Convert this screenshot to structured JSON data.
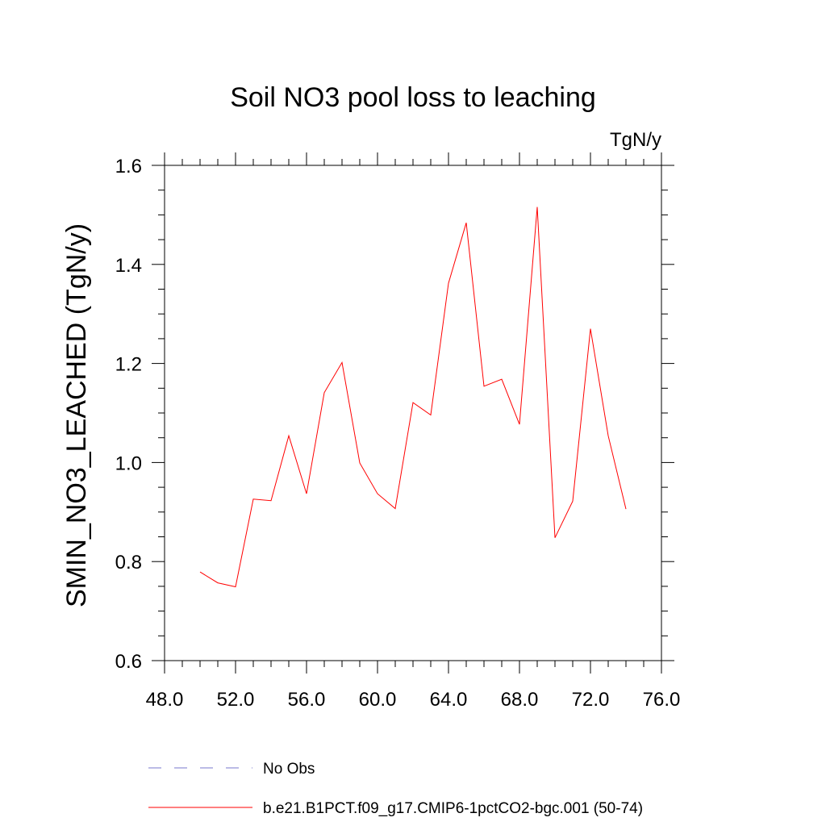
{
  "chart_data": {
    "type": "line",
    "title": "Soil NO3 pool loss to leaching",
    "units_label": "TgN/y",
    "xlabel": "",
    "ylabel": "SMIN_NO3_LEACHED  (TgN/y)",
    "xlim": [
      48,
      76
    ],
    "ylim": [
      0.6,
      1.6
    ],
    "x_ticks": [
      "48.0",
      "52.0",
      "56.0",
      "60.0",
      "64.0",
      "68.0",
      "72.0",
      "76.0"
    ],
    "y_ticks": [
      "0.6",
      "0.8",
      "1.0",
      "1.2",
      "1.4",
      "1.6"
    ],
    "grid": false,
    "legend_position": "bottom",
    "series": [
      {
        "name": "b.e21.B1PCT.f09_g17.CMIP6-1pctCO2-bgc.001 (50-74)",
        "color": "#ff0000",
        "x": [
          50,
          51,
          52,
          53,
          54,
          55,
          56,
          57,
          58,
          59,
          60,
          61,
          62,
          63,
          64,
          65,
          66,
          67,
          68,
          69,
          70,
          71,
          72,
          73,
          74
        ],
        "values": [
          0.779,
          0.757,
          0.749,
          0.926,
          0.923,
          1.054,
          0.937,
          1.141,
          1.202,
          0.999,
          0.937,
          0.907,
          1.121,
          1.096,
          1.362,
          1.484,
          1.154,
          1.168,
          1.077,
          1.516,
          0.848,
          0.922,
          1.27,
          1.054,
          0.906
        ]
      }
    ],
    "legend": [
      {
        "label": "No Obs",
        "color": "#7777cc",
        "style": "dashed"
      },
      {
        "label": "b.e21.B1PCT.f09_g17.CMIP6-1pctCO2-bgc.001 (50-74)",
        "color": "#ff0000",
        "style": "solid"
      }
    ]
  }
}
